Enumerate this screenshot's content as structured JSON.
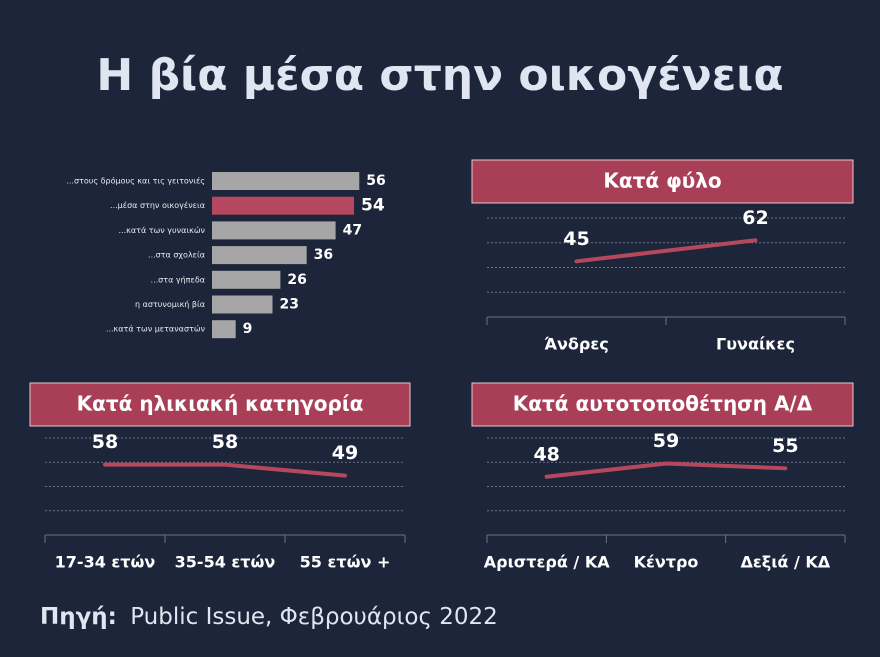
{
  "title": "Η βία μέσα στην οικογένεια",
  "source": {
    "label": "Πηγή:",
    "text": "Public Issue, Φεβρουάριος 2022"
  },
  "chart_data": [
    {
      "type": "bar",
      "orientation": "horizontal",
      "categories": [
        "...στους δρόμους και τις γειτονιές",
        "...μέσα στην οικογένεια",
        "...κατά των γυναικών",
        "...στα σχολεία",
        "...στα γήπεδα",
        "η αστυνομική βία",
        "...κατά των μεταναστών"
      ],
      "values": [
        56,
        54,
        47,
        36,
        26,
        23,
        9
      ],
      "colors": [
        "#a6a6a6",
        "#b5485f",
        "#a6a6a6",
        "#a6a6a6",
        "#a6a6a6",
        "#a6a6a6",
        "#a6a6a6"
      ]
    },
    {
      "type": "line",
      "title": "Κατά φύλο",
      "categories": [
        "Άνδρες",
        "Γυναίκες"
      ],
      "values": [
        45,
        62
      ],
      "color": "#b5485f",
      "ylim": [
        0,
        80
      ],
      "yticks": [
        0,
        20,
        40,
        60,
        80
      ],
      "grid": true
    },
    {
      "type": "line",
      "title": "Κατά ηλικιακή κατηγορία",
      "categories": [
        "17-34 ετών",
        "35-54 ετών",
        "55 ετών +"
      ],
      "values": [
        58,
        58,
        49
      ],
      "color": "#b5485f",
      "ylim": [
        0,
        80
      ],
      "yticks": [
        0,
        20,
        40,
        60,
        80
      ],
      "grid": true
    },
    {
      "type": "line",
      "title": "Κατά αυτοτοποθέτηση Α/Δ",
      "categories": [
        "Αριστερά / ΚΑ",
        "Κέντρο",
        "Δεξιά / ΚΔ"
      ],
      "values": [
        48,
        59,
        55
      ],
      "color": "#b5485f",
      "ylim": [
        0,
        80
      ],
      "yticks": [
        0,
        20,
        40,
        60,
        80
      ],
      "grid": true
    }
  ]
}
